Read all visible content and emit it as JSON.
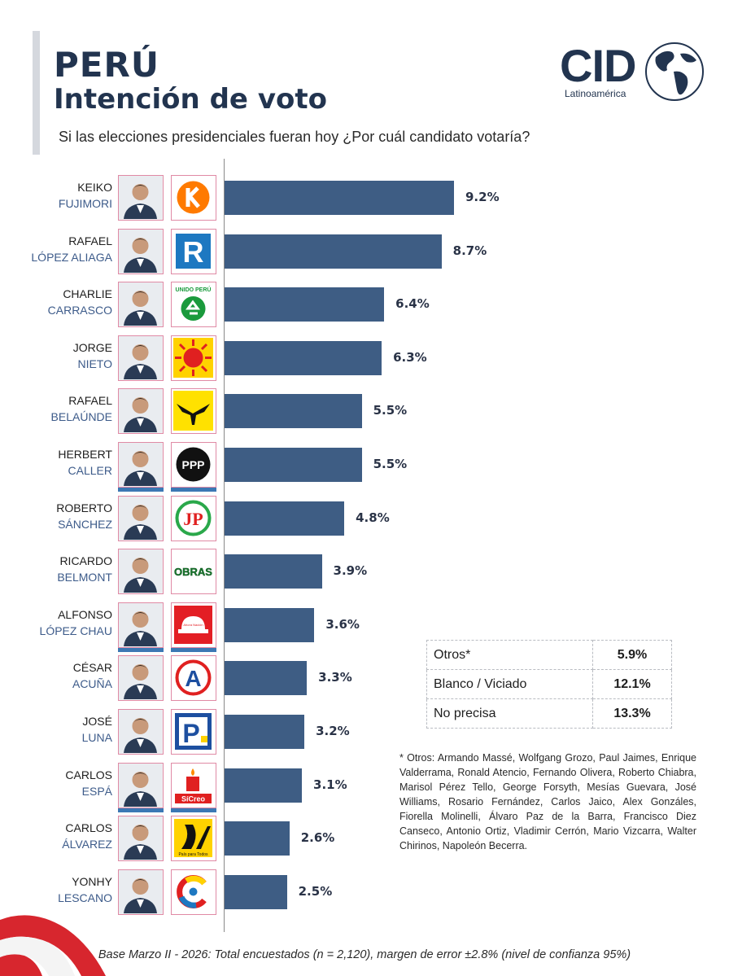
{
  "header": {
    "title": "PERÚ",
    "subtitle": "Intención de voto",
    "question": "Si las elecciones presidenciales fueran hoy ¿Por cuál candidato votaría?"
  },
  "logo": {
    "text": "CID",
    "sub": "Latinoamérica"
  },
  "chart_data": {
    "type": "bar",
    "orientation": "horizontal",
    "categories": [
      "KEIKO FUJIMORI",
      "RAFAEL LÓPEZ ALIAGA",
      "CHARLIE CARRASCO",
      "JORGE NIETO",
      "RAFAEL BELAÚNDE",
      "HERBERT CALLER",
      "ROBERTO SÁNCHEZ",
      "RICARDO BELMONT",
      "ALFONSO LÓPEZ CHAU",
      "CÉSAR ACUÑA",
      "JOSÉ LUNA",
      "CARLOS ESPÁ",
      "CARLOS ÁLVAREZ",
      "YONHY LESCANO"
    ],
    "values": [
      9.2,
      8.7,
      6.4,
      6.3,
      5.5,
      5.5,
      4.8,
      3.9,
      3.6,
      3.3,
      3.2,
      3.1,
      2.6,
      2.5
    ],
    "value_labels": [
      "9.2%",
      "8.7%",
      "6.4%",
      "6.3%",
      "5.5%",
      "5.5%",
      "4.8%",
      "3.9%",
      "3.6%",
      "3.3%",
      "3.2%",
      "3.1%",
      "2.6%",
      "2.5%"
    ],
    "bar_color": "#3e5d84",
    "grid": false,
    "legend": "none"
  },
  "candidates": [
    {
      "first": "KEIKO",
      "last": "FUJIMORI",
      "party_icon": "fuerza-popular-k-logo",
      "band": false
    },
    {
      "first": "RAFAEL",
      "last": "LÓPEZ ALIAGA",
      "party_icon": "renovacion-popular-r-logo",
      "band": false
    },
    {
      "first": "CHARLIE",
      "last": "CARRASCO",
      "party_icon": "unido-peru-recycle-logo",
      "party_text": "UNIDO PERÚ",
      "band": false
    },
    {
      "first": "JORGE",
      "last": "NIETO",
      "party_icon": "sun-face-logo",
      "band": false
    },
    {
      "first": "RAFAEL",
      "last": "BELAÚNDE",
      "party_icon": "condor-logo",
      "band": false
    },
    {
      "first": "HERBERT",
      "last": "CALLER",
      "party_icon": "ppp-logo",
      "party_text": "PPP",
      "band": true
    },
    {
      "first": "ROBERTO",
      "last": "SÁNCHEZ",
      "party_icon": "jp-logo",
      "party_text": "JP",
      "band": false
    },
    {
      "first": "RICARDO",
      "last": "BELMONT",
      "party_icon": "obras-logo",
      "party_text": "OBRAS",
      "band": false
    },
    {
      "first": "ALFONSO",
      "last": "LÓPEZ CHAU",
      "party_icon": "ahora-nacion-helmet-logo",
      "party_text": "Ahora Nación",
      "band": true
    },
    {
      "first": "CÉSAR",
      "last": "ACUÑA",
      "party_icon": "app-a-logo",
      "party_text": "A",
      "band": false
    },
    {
      "first": "JOSÉ",
      "last": "LUNA",
      "party_icon": "podemos-p-logo",
      "party_text": "P",
      "band": false
    },
    {
      "first": "CARLOS",
      "last": "ESPÁ",
      "party_icon": "si-creo-candle-logo",
      "party_text": "SíCreo",
      "band": true
    },
    {
      "first": "CARLOS",
      "last": "ÁLVAREZ",
      "party_icon": "pais-para-todos-road-logo",
      "party_text": "País para Todos",
      "band": false
    },
    {
      "first": "YONHY",
      "last": "LESCANO",
      "party_icon": "cooperacion-popular-c-logo",
      "band": false
    }
  ],
  "others_table": [
    {
      "label": "Otros*",
      "value": "5.9%"
    },
    {
      "label": "Blanco / Viciado",
      "value": "12.1%"
    },
    {
      "label": "No precisa",
      "value": "13.3%"
    }
  ],
  "note": "* Otros: Armando Massé, Wolfgang Grozo, Paul Jaimes, Enrique Valderrama, Ronald Atencio, Fernando Olivera, Roberto Chiabra, Marisol Pérez Tello, George Forsyth, Mesías Guevara, José Williams, Rosario Fernández, Carlos Jaico, Alex Gonzáles, Fiorella Molinelli, Álvaro Paz de la Barra, Francisco Diez Canseco, Antonio Ortiz, Vladimir Cerrón, Mario Vizcarra, Walter Chirinos, Napoleón Becerra.",
  "footer": "Base Marzo II - 2026: Total encuestados (n = 2,120), margen de error ±2.8% (nivel de confianza 95%)"
}
